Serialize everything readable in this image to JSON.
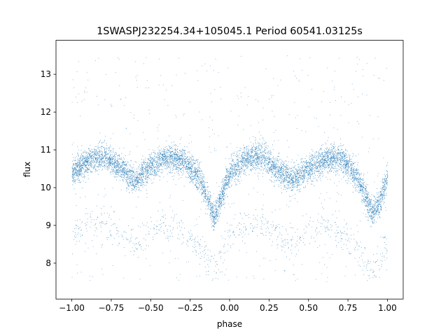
{
  "chart_data": {
    "type": "scatter",
    "title": "1SWASPJ232254.34+105045.1 Period 60541.03125s",
    "xlabel": "phase",
    "ylabel": "flux",
    "xlim": [
      -1.1,
      1.1
    ],
    "ylim": [
      7.05,
      13.9
    ],
    "x_ticks": [
      -1.0,
      -0.75,
      -0.5,
      -0.25,
      0.0,
      0.25,
      0.5,
      0.75,
      1.0
    ],
    "x_tick_labels": [
      "−1.00",
      "−0.75",
      "−0.50",
      "−0.25",
      "0.00",
      "0.25",
      "0.50",
      "0.75",
      "1.00"
    ],
    "y_ticks": [
      8,
      9,
      10,
      11,
      12,
      13
    ],
    "y_tick_labels": [
      "8",
      "9",
      "10",
      "11",
      "12",
      "13"
    ],
    "grid": false,
    "legend": "none",
    "point_color": "#1f77b4",
    "phase_range": [
      -1.0,
      1.0
    ],
    "light_curve": {
      "phase": [
        -1.0,
        -0.9,
        -0.8,
        -0.7,
        -0.6,
        -0.5,
        -0.4,
        -0.3,
        -0.2,
        -0.15,
        -0.1,
        -0.05,
        0.0,
        0.1,
        0.2,
        0.3,
        0.4,
        0.5,
        0.6,
        0.7,
        0.8,
        0.85,
        0.9,
        0.95,
        1.0
      ],
      "flux": [
        10.4,
        10.7,
        10.85,
        10.55,
        10.2,
        10.55,
        10.8,
        10.7,
        10.3,
        9.8,
        9.2,
        9.8,
        10.4,
        10.75,
        10.85,
        10.5,
        10.2,
        10.5,
        10.75,
        10.8,
        10.35,
        9.85,
        9.35,
        9.6,
        10.3
      ]
    },
    "faint_branch": {
      "phase": [
        -1.0,
        -0.9,
        -0.8,
        -0.7,
        -0.6,
        -0.5,
        -0.4,
        -0.3,
        -0.2,
        -0.1,
        0.0,
        0.1,
        0.2,
        0.3,
        0.4,
        0.5,
        0.6,
        0.7,
        0.8,
        0.9,
        1.0
      ],
      "flux": [
        8.7,
        8.95,
        9.1,
        8.8,
        8.55,
        8.85,
        9.05,
        8.9,
        8.4,
        7.8,
        8.7,
        8.95,
        9.1,
        8.8,
        8.55,
        8.85,
        9.05,
        8.9,
        8.4,
        7.8,
        8.6
      ]
    },
    "scatter_spread": 0.18,
    "outlier_range": [
      7.5,
      13.5
    ]
  }
}
